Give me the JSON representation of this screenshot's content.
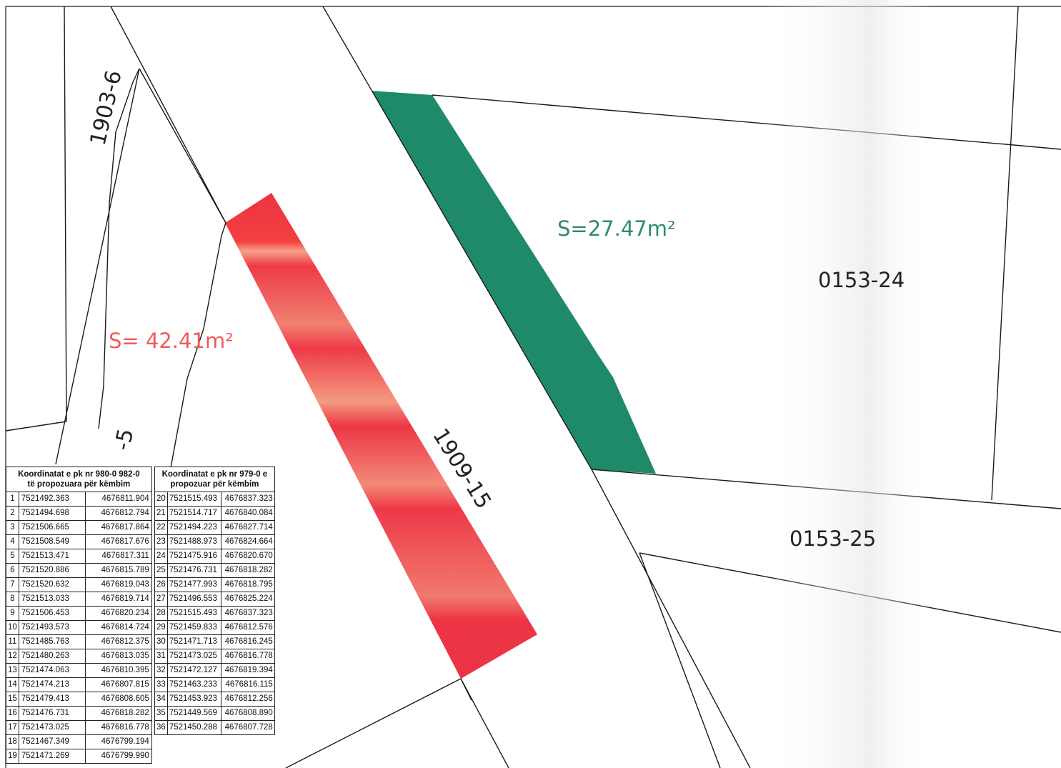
{
  "map": {
    "parcels": [
      {
        "id": "1903-6"
      },
      {
        "id": "1909-15"
      },
      {
        "id": "0153-24"
      },
      {
        "id": "0153-25"
      },
      {
        "id": "-5"
      }
    ],
    "areas": [
      {
        "label": "S= 42.41m²",
        "color": "#f05a5a"
      },
      {
        "label": "S=27.47m²",
        "color": "#2e8b6b"
      }
    ],
    "colors": {
      "red_area": "#ee3a4a",
      "green_area": "#1f8a6a",
      "lines": "#1a1a1a"
    }
  },
  "table_left": {
    "header_line1": "Koordinatat e pk nr  980-0 982-0",
    "header_line2": "të  propozuara për këmbim",
    "rows": [
      [
        "1",
        "7521492.363",
        "4676811.904"
      ],
      [
        "2",
        "7521494.698",
        "4676812.794"
      ],
      [
        "3",
        "7521506.665",
        "4676817.864"
      ],
      [
        "4",
        "7521508.549",
        "4676817.676"
      ],
      [
        "5",
        "7521513.471",
        "4676817.311"
      ],
      [
        "6",
        "7521520.886",
        "4676815.789"
      ],
      [
        "7",
        "7521520.632",
        "4676819.043"
      ],
      [
        "8",
        "7521513.033",
        "4676819.714"
      ],
      [
        "9",
        "7521506.453",
        "4676820.234"
      ],
      [
        "10",
        "7521493.573",
        "4676814.724"
      ],
      [
        "11",
        "7521485.763",
        "4676812.375"
      ],
      [
        "12",
        "7521480.263",
        "4676813.035"
      ],
      [
        "13",
        "7521474.063",
        "4676810.395"
      ],
      [
        "14",
        "7521474.213",
        "4676807.815"
      ],
      [
        "15",
        "7521479.413",
        "4676808.605"
      ],
      [
        "16",
        "7521476.731",
        "4676818.282"
      ],
      [
        "17",
        "7521473.025",
        "4676816.778"
      ],
      [
        "18",
        "7521467.349",
        "4676799.194"
      ],
      [
        "19",
        "7521471.269",
        "4676799.990"
      ]
    ]
  },
  "table_right": {
    "header_line1": "Koordinatat e pk nr 979-0 e",
    "header_line2": "propozuar për këmbim",
    "rows": [
      [
        "20",
        "7521515.493",
        "4676837.323"
      ],
      [
        "21",
        "7521514.717",
        "4676840.084"
      ],
      [
        "22",
        "7521494.223",
        "4676827.714"
      ],
      [
        "23",
        "7521488.973",
        "4676824.664"
      ],
      [
        "24",
        "7521475.916",
        "4676820.670"
      ],
      [
        "25",
        "7521476.731",
        "4676818.282"
      ],
      [
        "26",
        "7521477.993",
        "4676818.795"
      ],
      [
        "27",
        "7521496.553",
        "4676825.224"
      ],
      [
        "28",
        "7521515.493",
        "4676837.323"
      ],
      [
        "29",
        "7521459.833",
        "4676812.576"
      ],
      [
        "30",
        "7521471.713",
        "4676816.245"
      ],
      [
        "31",
        "7521473.025",
        "4676816.778"
      ],
      [
        "32",
        "7521472.127",
        "4676819.394"
      ],
      [
        "33",
        "7521463.233",
        "4676816.115"
      ],
      [
        "34",
        "7521453.923",
        "4676812.256"
      ],
      [
        "35",
        "7521449.569",
        "4676808.890"
      ],
      [
        "36",
        "7521450.288",
        "4676807.728"
      ]
    ]
  }
}
